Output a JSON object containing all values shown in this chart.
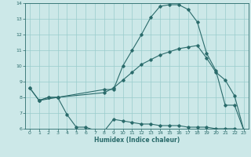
{
  "xlabel": "Humidex (Indice chaleur)",
  "xlim": [
    -0.5,
    23.5
  ],
  "ylim": [
    6,
    14
  ],
  "xticks": [
    0,
    1,
    2,
    3,
    4,
    5,
    6,
    7,
    8,
    9,
    10,
    11,
    12,
    13,
    14,
    15,
    16,
    17,
    18,
    19,
    20,
    21,
    22,
    23
  ],
  "yticks": [
    6,
    7,
    8,
    9,
    10,
    11,
    12,
    13,
    14
  ],
  "bg_color": "#cce8e8",
  "grid_color": "#99cccc",
  "line_color": "#2a6b6b",
  "line1_x": [
    0,
    1,
    2,
    3,
    8,
    9,
    10,
    11,
    12,
    13,
    14,
    15,
    16,
    17,
    18,
    19,
    20,
    21,
    22,
    23
  ],
  "line1_y": [
    8.6,
    7.8,
    8.0,
    8.0,
    8.5,
    8.5,
    10.0,
    11.0,
    12.0,
    13.1,
    13.8,
    13.9,
    13.9,
    13.6,
    12.8,
    10.8,
    9.7,
    7.5,
    7.5,
    5.9
  ],
  "line2_x": [
    0,
    1,
    2,
    3,
    8,
    9,
    10,
    11,
    12,
    13,
    14,
    15,
    16,
    17,
    18,
    19,
    20,
    21,
    22,
    23
  ],
  "line2_y": [
    8.6,
    7.8,
    8.0,
    8.0,
    8.3,
    8.6,
    9.1,
    9.6,
    10.1,
    10.4,
    10.7,
    10.9,
    11.1,
    11.2,
    11.3,
    10.5,
    9.6,
    9.1,
    8.1,
    5.9
  ],
  "line3_x": [
    1,
    3,
    4,
    5,
    6,
    7,
    8,
    9,
    10,
    11,
    12,
    13,
    14,
    15,
    16,
    17,
    18,
    19,
    20,
    21,
    22,
    23
  ],
  "line3_y": [
    7.8,
    8.0,
    6.9,
    6.1,
    6.1,
    5.9,
    5.85,
    6.6,
    6.5,
    6.4,
    6.3,
    6.3,
    6.2,
    6.2,
    6.2,
    6.1,
    6.1,
    6.1,
    6.0,
    6.0,
    6.0,
    5.9
  ]
}
